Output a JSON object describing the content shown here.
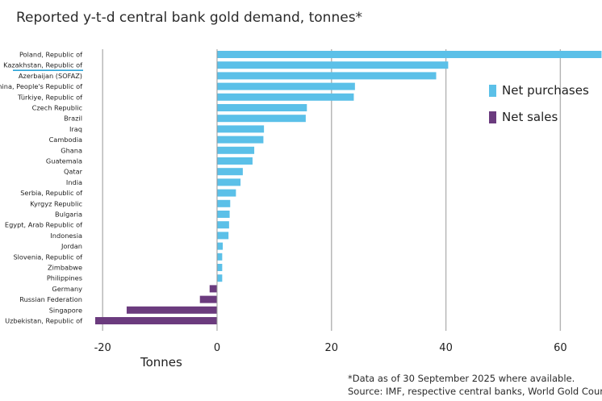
{
  "chart_data": {
    "type": "bar",
    "orientation": "horizontal",
    "title": "Reported y-t-d central bank gold demand, tonnes*",
    "xlabel": "Tonnes",
    "ylabel": "",
    "xlim": [
      -22,
      67
    ],
    "xticks": [
      -20,
      0,
      20,
      40,
      60
    ],
    "grid": true,
    "legend_position": "top-right",
    "highlighted_category": "Kazakhstan, Republic of",
    "categories": [
      "Poland, Republic of",
      "Kazakhstan, Republic of",
      "Azerbaijan (SOFAZ)",
      "China, People's Republic of",
      "Türkiye, Republic of",
      "Czech Republic",
      "Brazil",
      "Iraq",
      "Cambodia",
      "Ghana",
      "Guatemala",
      "Qatar",
      "India",
      "Serbia, Republic of",
      "Kyrgyz Republic",
      "Bulgaria",
      "Egypt, Arab Republic of",
      "Indonesia",
      "Jordan",
      "Slovenia, Republic of",
      "Zimbabwe",
      "Philippines",
      "Germany",
      "Russian Federation",
      "Singapore",
      "Uzbekistan, Republic of"
    ],
    "values": [
      67.2,
      40.4,
      38.3,
      24.1,
      23.9,
      15.7,
      15.5,
      8.2,
      8.1,
      6.5,
      6.2,
      4.5,
      4.1,
      3.3,
      2.3,
      2.2,
      2.1,
      2.0,
      1.0,
      0.9,
      0.9,
      0.9,
      -1.3,
      -3.0,
      -15.8,
      -21.3
    ],
    "series": [
      {
        "name": "Net purchases",
        "color": "#5bc0e8"
      },
      {
        "name": "Net sales",
        "color": "#6b3b7e"
      }
    ],
    "footnotes": [
      "*Data as of 30 September 2025 where available.",
      "Source: IMF, respective central banks, World Gold Council"
    ]
  }
}
